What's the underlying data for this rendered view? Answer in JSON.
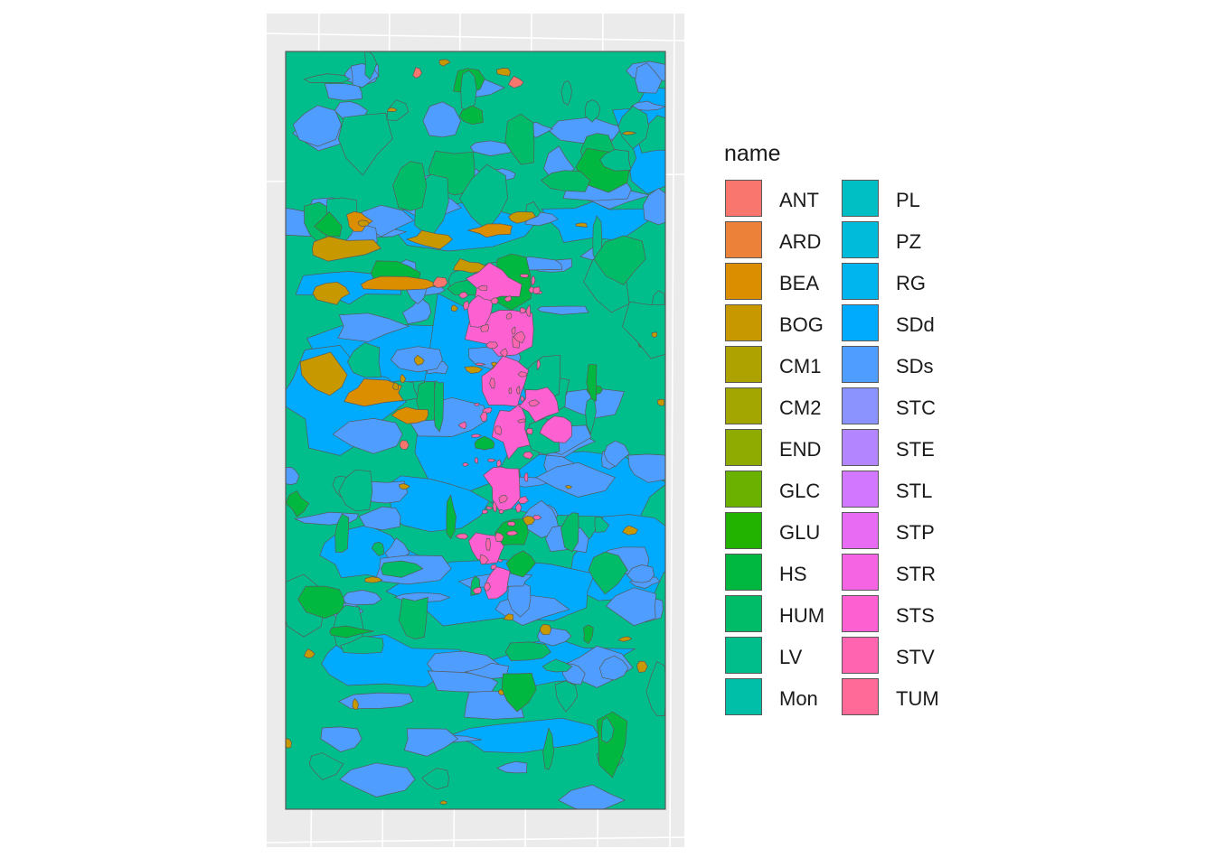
{
  "map": {
    "background_color": "#ebebeb",
    "border_color": "#595959",
    "graticule_color": "#ffffff",
    "dominant_classes": [
      "LV",
      "SDd",
      "SDs",
      "HS",
      "BOG",
      "STS"
    ]
  },
  "legend": {
    "title": "name",
    "columns": [
      [
        {
          "label": "ANT",
          "color": "#F8766D"
        },
        {
          "label": "ARD",
          "color": "#EC8239"
        },
        {
          "label": "BEA",
          "color": "#DB8E00"
        },
        {
          "label": "BOG",
          "color": "#C79800"
        },
        {
          "label": "CM1",
          "color": "#AEA200"
        },
        {
          "label": "CM2",
          "color": "#A3A500"
        },
        {
          "label": "END",
          "color": "#8FAA00"
        },
        {
          "label": "GLC",
          "color": "#6BB100"
        },
        {
          "label": "GLU",
          "color": "#22B300"
        },
        {
          "label": "HS",
          "color": "#00B83F"
        },
        {
          "label": "HUM",
          "color": "#00BC69"
        },
        {
          "label": "LV",
          "color": "#00BE8C"
        },
        {
          "label": "Mon",
          "color": "#00BFA8"
        }
      ],
      [
        {
          "label": "PL",
          "color": "#00BFC4"
        },
        {
          "label": "PZ",
          "color": "#00BBDA"
        },
        {
          "label": "RG",
          "color": "#00B5EE"
        },
        {
          "label": "SDd",
          "color": "#00ABFD"
        },
        {
          "label": "SDs",
          "color": "#4F9EFF"
        },
        {
          "label": "STC",
          "color": "#8B93FF"
        },
        {
          "label": "STE",
          "color": "#B385FF"
        },
        {
          "label": "STL",
          "color": "#D277FF"
        },
        {
          "label": "STP",
          "color": "#E76BF3"
        },
        {
          "label": "STR",
          "color": "#F564E3"
        },
        {
          "label": "STS",
          "color": "#FD61D1"
        },
        {
          "label": "STV",
          "color": "#FF64B0"
        },
        {
          "label": "TUM",
          "color": "#FF6A98"
        }
      ]
    ]
  }
}
